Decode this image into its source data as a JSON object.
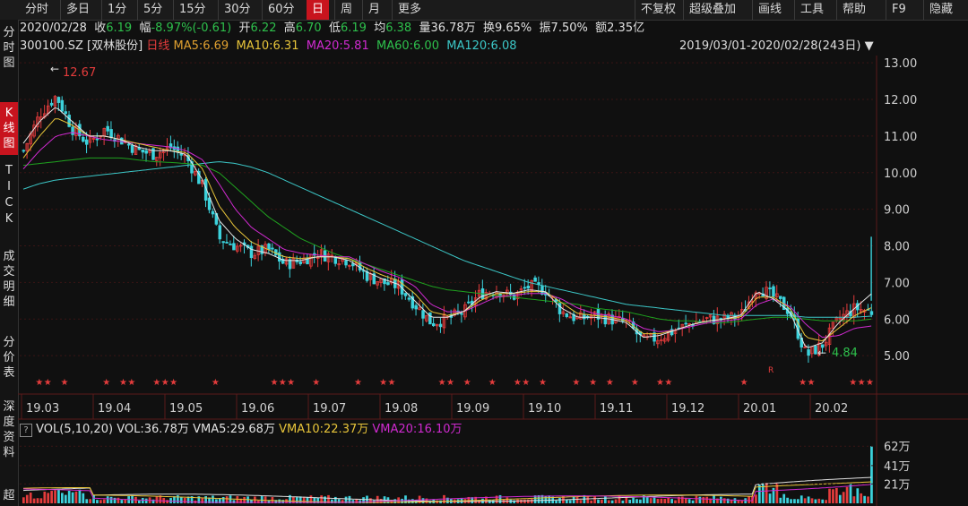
{
  "toolbar": {
    "periods": [
      "分时",
      "多日",
      "1分",
      "5分",
      "15分",
      "30分",
      "60分",
      "日",
      "周",
      "月",
      "更多"
    ],
    "active_period": "日",
    "right_items": [
      "不复权",
      "超级叠加",
      "画线",
      "工具",
      "帮助",
      "F9",
      "隐藏"
    ]
  },
  "sidebar": {
    "items": [
      "分\n时\n图",
      "K\n线\n图",
      "T\nI\nC\nK",
      "成\n交\n明\n细",
      "分\n价\n表",
      "深\n度\n资\n料"
    ],
    "active_index": 1,
    "help_mark": "?",
    "last_char": "超"
  },
  "quote": {
    "date": "2020/02/28",
    "close_label": "收",
    "close": "6.19",
    "change_label": "幅",
    "change": "-8.97%(-0.61)",
    "open_label": "开",
    "open": "6.22",
    "high_label": "高",
    "high": "6.70",
    "low_label": "低",
    "low": "6.19",
    "avg_label": "均",
    "avg": "6.38",
    "volume_label": "量",
    "volume": "36.78万",
    "turnover_label": "换",
    "turnover": "9.65%",
    "amplitude_label": "振",
    "amplitude": "7.50%",
    "amount_label": "额",
    "amount": "2.35亿"
  },
  "ma_bar": {
    "code": "300100.SZ [双林股份]",
    "period": "日线",
    "ma5": "MA5:6.69",
    "ma10": "MA10:6.31",
    "ma20": "MA20:5.81",
    "ma60": "MA60:6.00",
    "ma120": "MA120:6.08",
    "range": "2019/03/01-2020/02/28(243日)"
  },
  "volume_bar": {
    "title": "VOL(5,10,20)",
    "vol": "VOL:36.78万",
    "vma5": "VMA5:29.68万",
    "vma10": "VMA10:22.37万",
    "vma20": "VMA20:16.10万"
  },
  "colors": {
    "up": "#e43c3c",
    "down": "#3cd2dc",
    "ma5": "#e6e6e6",
    "ma10": "#e8c53a",
    "ma20": "#d02ad0",
    "ma60": "#1fa21f",
    "ma120": "#3cc8c8",
    "grid": "#3a1414"
  },
  "chart_data": {
    "type": "candlestick",
    "price_axis": {
      "ticks": [
        "13.00",
        "12.00",
        "11.00",
        "10.00",
        "9.00",
        "8.00",
        "7.00",
        "6.00",
        "5.00"
      ],
      "range": [
        4.0,
        13.2
      ]
    },
    "month_labels": [
      "19.03",
      "19.04",
      "19.05",
      "19.06",
      "19.07",
      "19.08",
      "19.09",
      "19.10",
      "19.11",
      "19.12",
      "20.01",
      "20.02"
    ],
    "annotations": {
      "high": "12.67",
      "low": "4.84",
      "r_mark": "R"
    },
    "volume_axis": {
      "ticks": [
        "62万",
        "41万",
        "21万"
      ],
      "range": [
        0,
        70
      ]
    },
    "price_path": [
      10.6,
      11.6,
      12.1,
      11.2,
      10.8,
      11.2,
      10.9,
      10.6,
      10.5,
      10.7,
      10.4,
      9.6,
      8.2,
      8.0,
      7.8,
      7.9,
      7.5,
      7.6,
      7.8,
      7.7,
      7.6,
      7.2,
      7.0,
      6.9,
      6.4,
      5.9,
      6.0,
      6.2,
      6.7,
      6.8,
      6.6,
      6.9,
      6.8,
      6.2,
      6.0,
      6.1,
      6.0,
      5.9,
      5.4,
      5.5,
      5.7,
      5.9,
      6.0,
      6.0,
      6.1,
      6.9,
      6.6,
      6.2,
      5.0,
      5.3,
      6.0,
      6.3,
      6.2
    ],
    "ma5": [
      10.8,
      11.4,
      11.8,
      11.4,
      11.0,
      11.0,
      10.9,
      10.7,
      10.6,
      10.6,
      10.5,
      9.8,
      8.7,
      8.2,
      7.9,
      7.8,
      7.6,
      7.6,
      7.7,
      7.7,
      7.6,
      7.3,
      7.1,
      6.95,
      6.5,
      6.05,
      6.05,
      6.2,
      6.6,
      6.75,
      6.7,
      6.8,
      6.75,
      6.3,
      6.05,
      6.05,
      6.0,
      5.9,
      5.5,
      5.55,
      5.7,
      5.85,
      5.95,
      6.0,
      6.1,
      6.75,
      6.55,
      6.2,
      5.2,
      5.35,
      5.9,
      6.3,
      6.69
    ],
    "ma10": [
      10.4,
      11.0,
      11.5,
      11.3,
      11.0,
      11.0,
      10.9,
      10.8,
      10.7,
      10.6,
      10.55,
      10.1,
      9.1,
      8.5,
      8.1,
      7.9,
      7.7,
      7.65,
      7.7,
      7.7,
      7.65,
      7.4,
      7.2,
      7.05,
      6.7,
      6.2,
      6.1,
      6.2,
      6.5,
      6.7,
      6.7,
      6.75,
      6.75,
      6.45,
      6.15,
      6.1,
      6.05,
      5.95,
      5.6,
      5.6,
      5.7,
      5.85,
      5.95,
      6.0,
      6.05,
      6.6,
      6.6,
      6.3,
      5.5,
      5.4,
      5.75,
      6.1,
      6.31
    ],
    "ma20": [
      10.1,
      10.6,
      11.0,
      11.1,
      11.0,
      10.9,
      10.85,
      10.8,
      10.75,
      10.7,
      10.6,
      10.35,
      9.7,
      9.0,
      8.5,
      8.2,
      7.9,
      7.8,
      7.75,
      7.7,
      7.7,
      7.5,
      7.3,
      7.15,
      6.9,
      6.4,
      6.2,
      6.2,
      6.4,
      6.6,
      6.65,
      6.7,
      6.7,
      6.55,
      6.3,
      6.15,
      6.1,
      6.0,
      5.75,
      5.65,
      5.7,
      5.8,
      5.9,
      5.95,
      6.0,
      6.4,
      6.55,
      6.35,
      5.85,
      5.5,
      5.55,
      5.75,
      5.81
    ],
    "ma60": [
      10.2,
      10.25,
      10.3,
      10.35,
      10.4,
      10.4,
      10.4,
      10.35,
      10.3,
      10.28,
      10.25,
      10.2,
      10.0,
      9.6,
      9.2,
      8.8,
      8.5,
      8.2,
      8.0,
      7.8,
      7.65,
      7.5,
      7.35,
      7.2,
      7.05,
      6.9,
      6.8,
      6.75,
      6.7,
      6.65,
      6.6,
      6.55,
      6.5,
      6.45,
      6.4,
      6.3,
      6.25,
      6.2,
      6.1,
      6.0,
      5.95,
      5.95,
      5.9,
      5.9,
      5.95,
      6.0,
      6.05,
      6.05,
      6.0,
      5.95,
      5.95,
      5.95,
      6.0
    ],
    "ma120": [
      9.55,
      9.7,
      9.8,
      9.85,
      9.9,
      9.95,
      10.0,
      10.05,
      10.1,
      10.15,
      10.2,
      10.25,
      10.3,
      10.25,
      10.15,
      10.0,
      9.8,
      9.6,
      9.4,
      9.2,
      9.0,
      8.8,
      8.6,
      8.4,
      8.2,
      8.0,
      7.8,
      7.6,
      7.45,
      7.3,
      7.15,
      7.0,
      6.9,
      6.8,
      6.7,
      6.6,
      6.5,
      6.4,
      6.35,
      6.3,
      6.25,
      6.2,
      6.15,
      6.1,
      6.1,
      6.1,
      6.1,
      6.1,
      6.05,
      6.05,
      6.05,
      6.05,
      6.08
    ]
  }
}
